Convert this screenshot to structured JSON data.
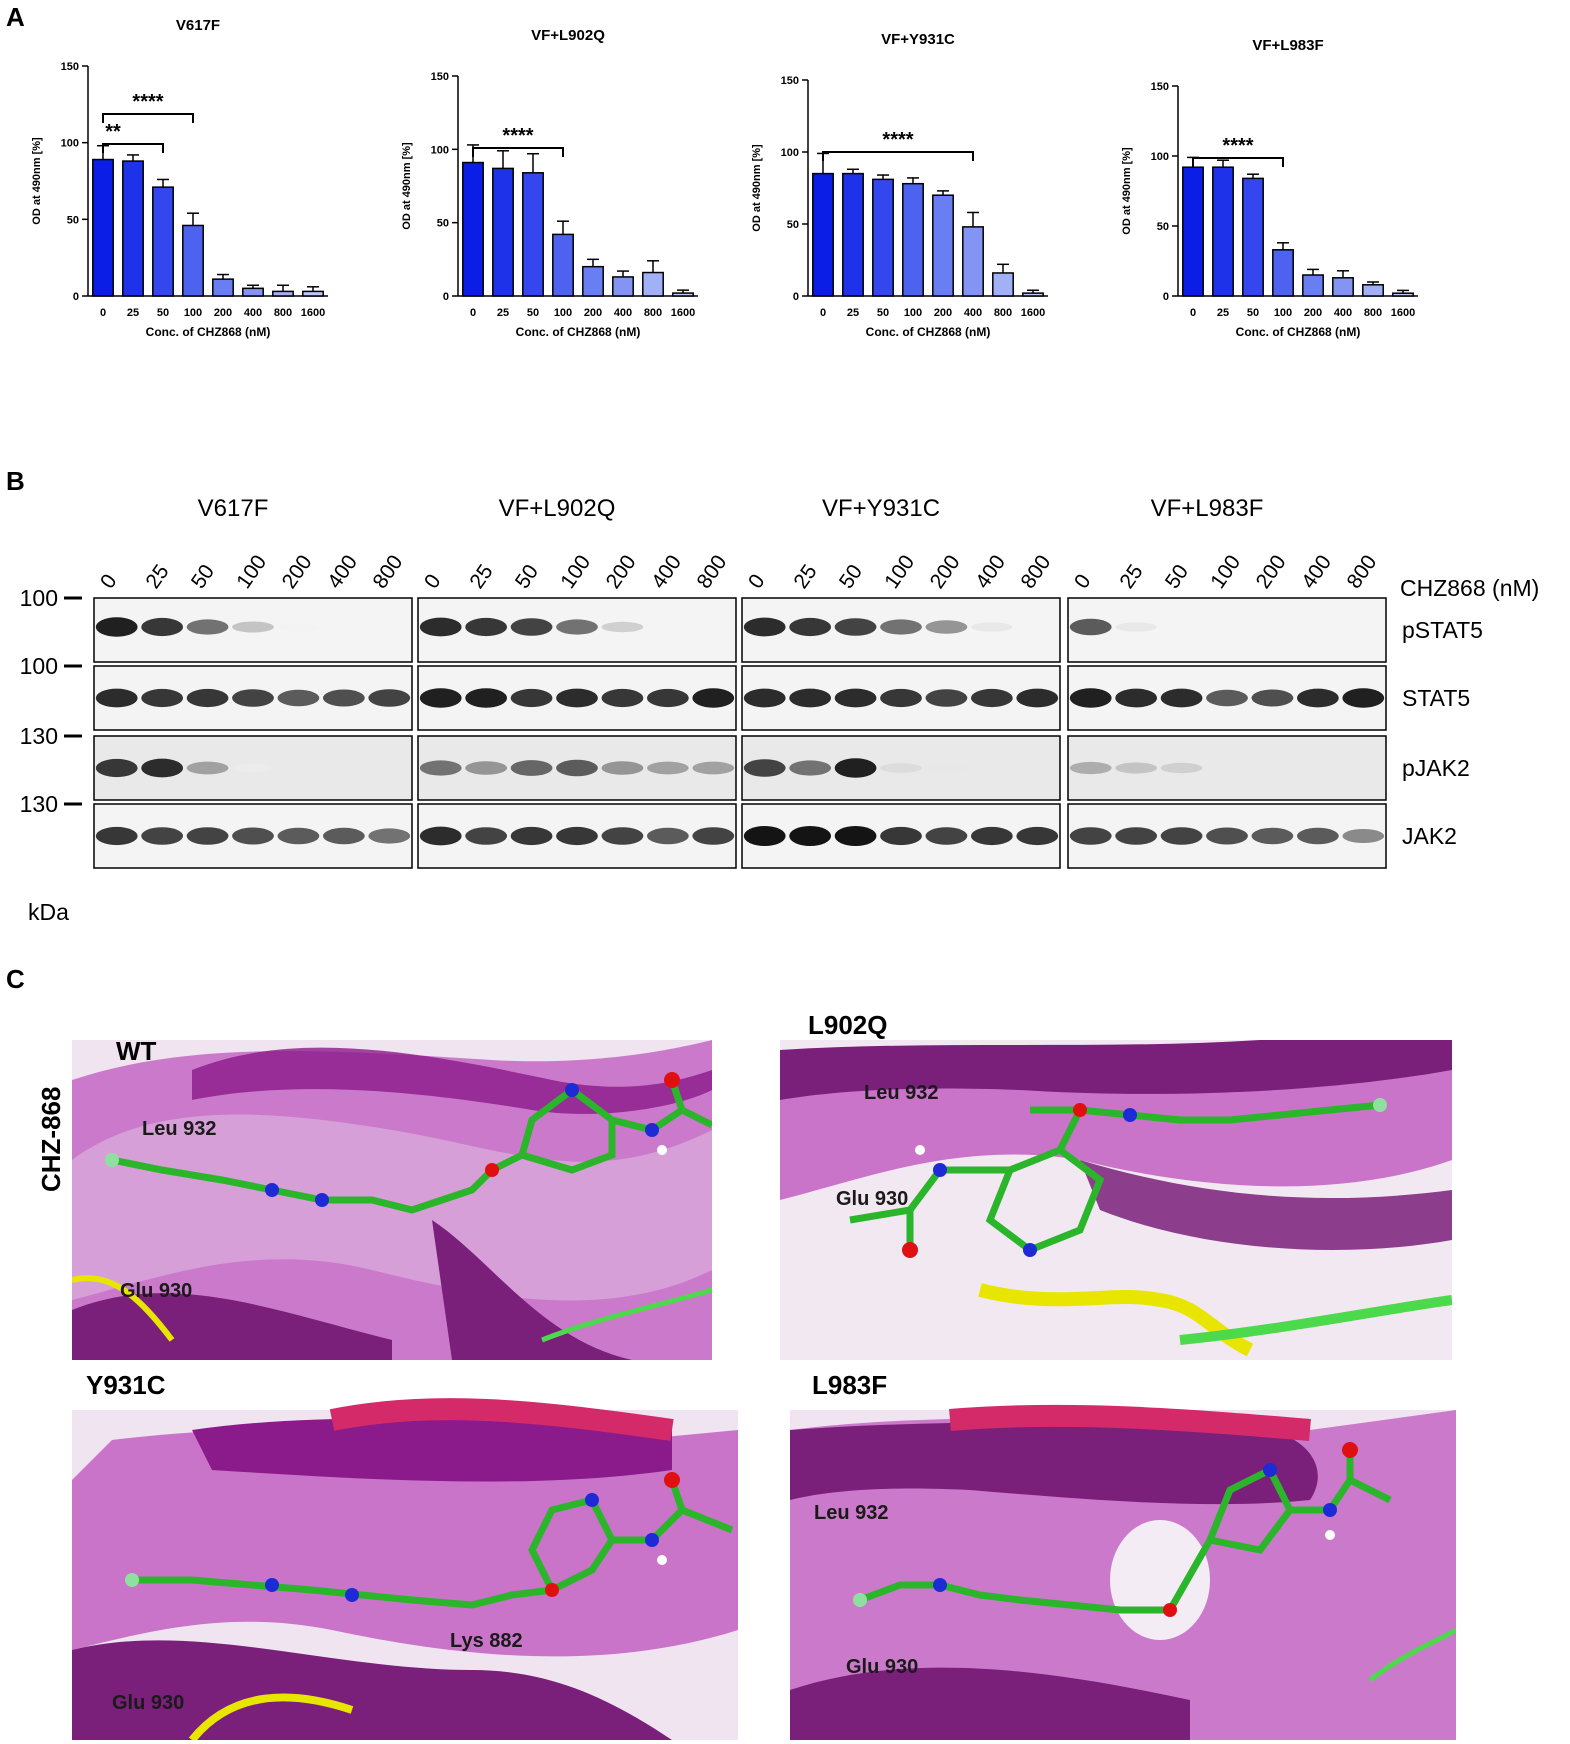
{
  "panel_letters": {
    "a": "A",
    "b": "B",
    "c": "C"
  },
  "chart_data": [
    {
      "type": "bar",
      "title": "V617F",
      "xlabel": "Conc. of CHZ868 (nM)",
      "ylabel": "OD at 490nm [%]",
      "categories": [
        "0",
        "25",
        "50",
        "100",
        "200",
        "400",
        "800",
        "1600"
      ],
      "values": [
        89,
        88,
        71,
        46,
        11,
        5,
        3,
        3
      ],
      "errors": [
        9,
        4,
        5,
        8,
        3,
        2,
        4,
        3
      ],
      "ylim": [
        0,
        150
      ],
      "yticks": [
        "0",
        "50",
        "100",
        "150"
      ],
      "significance": [
        {
          "from": "0",
          "to": "100",
          "label": "****"
        },
        {
          "from": "0",
          "to": "50",
          "label": "**"
        }
      ]
    },
    {
      "type": "bar",
      "title": "VF+L902Q",
      "xlabel": "Conc. of CHZ868 (nM)",
      "ylabel": "OD at 490nm [%]",
      "categories": [
        "0",
        "25",
        "50",
        "100",
        "200",
        "400",
        "800",
        "1600"
      ],
      "values": [
        91,
        87,
        84,
        42,
        20,
        13,
        16,
        2
      ],
      "errors": [
        12,
        12,
        13,
        9,
        5,
        4,
        8,
        2
      ],
      "ylim": [
        0,
        150
      ],
      "yticks": [
        "0",
        "50",
        "100",
        "150"
      ],
      "significance": [
        {
          "from": "0",
          "to": "100",
          "label": "****"
        }
      ]
    },
    {
      "type": "bar",
      "title": "VF+Y931C",
      "xlabel": "Conc. of CHZ868 (nM)",
      "ylabel": "OD at 490nm [%]",
      "categories": [
        "0",
        "25",
        "50",
        "100",
        "200",
        "400",
        "800",
        "1600"
      ],
      "values": [
        85,
        85,
        81,
        78,
        70,
        48,
        16,
        2
      ],
      "errors": [
        14,
        3,
        3,
        4,
        3,
        10,
        6,
        2
      ],
      "ylim": [
        0,
        150
      ],
      "yticks": [
        "0",
        "50",
        "100",
        "150"
      ],
      "significance": [
        {
          "from": "0",
          "to": "400",
          "label": "****"
        }
      ]
    },
    {
      "type": "bar",
      "title": "VF+L983F",
      "xlabel": "Conc. of CHZ868 (nM)",
      "ylabel": "OD at 490nm [%]",
      "categories": [
        "0",
        "25",
        "50",
        "100",
        "200",
        "400",
        "800",
        "1600"
      ],
      "values": [
        92,
        92,
        84,
        33,
        15,
        13,
        8,
        2
      ],
      "errors": [
        7,
        5,
        3,
        5,
        4,
        5,
        2,
        2
      ],
      "ylim": [
        0,
        150
      ],
      "yticks": [
        "0",
        "50",
        "100",
        "150"
      ],
      "significance": [
        {
          "from": "0",
          "to": "100",
          "label": "****"
        }
      ]
    }
  ],
  "bar_colors": [
    "#0a1ee6",
    "#1e32ea",
    "#3447ee",
    "#4d63f0",
    "#6a7ef3",
    "#8394f5",
    "#a2b0f8",
    "#bcc7fa"
  ],
  "western": {
    "groups": [
      "V617F",
      "VF+L902Q",
      "VF+Y931C",
      "VF+L983F"
    ],
    "lanes": [
      "0",
      "25",
      "50",
      "100",
      "200",
      "400",
      "800"
    ],
    "treatment_label": "CHZ868 (nM)",
    "unit_label": "kDa",
    "blots": [
      {
        "name": "pSTAT5",
        "marker": "100",
        "intensity": [
          [
            0.95,
            0.85,
            0.6,
            0.25,
            0.05,
            0,
            0
          ],
          [
            0.9,
            0.85,
            0.8,
            0.6,
            0.2,
            0,
            0
          ],
          [
            0.9,
            0.85,
            0.8,
            0.6,
            0.45,
            0.1,
            0
          ],
          [
            0.7,
            0.1,
            0,
            0,
            0,
            0,
            0
          ]
        ]
      },
      {
        "name": "STAT5",
        "marker": "100",
        "intensity": [
          [
            0.9,
            0.85,
            0.85,
            0.8,
            0.7,
            0.75,
            0.8
          ],
          [
            0.95,
            0.95,
            0.85,
            0.9,
            0.85,
            0.85,
            0.95
          ],
          [
            0.9,
            0.9,
            0.9,
            0.85,
            0.8,
            0.85,
            0.9
          ],
          [
            0.95,
            0.9,
            0.9,
            0.7,
            0.75,
            0.9,
            0.95
          ]
        ]
      },
      {
        "name": "pJAK2",
        "marker": "130",
        "intensity": [
          [
            0.85,
            0.9,
            0.4,
            0.08,
            0,
            0,
            0
          ],
          [
            0.6,
            0.45,
            0.65,
            0.7,
            0.45,
            0.4,
            0.4
          ],
          [
            0.8,
            0.6,
            0.95,
            0.15,
            0.1,
            0,
            0
          ],
          [
            0.35,
            0.25,
            0.2,
            0,
            0,
            0,
            0
          ]
        ]
      },
      {
        "name": "JAK2",
        "marker": "130",
        "intensity": [
          [
            0.85,
            0.8,
            0.8,
            0.75,
            0.7,
            0.7,
            0.6
          ],
          [
            0.9,
            0.8,
            0.85,
            0.85,
            0.8,
            0.7,
            0.8
          ],
          [
            1,
            1,
            1,
            0.85,
            0.8,
            0.85,
            0.85
          ],
          [
            0.8,
            0.8,
            0.8,
            0.75,
            0.7,
            0.7,
            0.5
          ]
        ]
      }
    ]
  },
  "docking": {
    "side_label": "CHZ-868",
    "panels": [
      {
        "title": "WT",
        "residues": [
          "Leu 932",
          "Glu 930"
        ]
      },
      {
        "title": "L902Q",
        "residues": [
          "Leu 932",
          "Glu 930"
        ]
      },
      {
        "title": "Y931C",
        "residues": [
          "Lys 882",
          "Glu 930"
        ]
      },
      {
        "title": "L983F",
        "residues": [
          "Leu 932",
          "Glu 930"
        ]
      }
    ]
  }
}
